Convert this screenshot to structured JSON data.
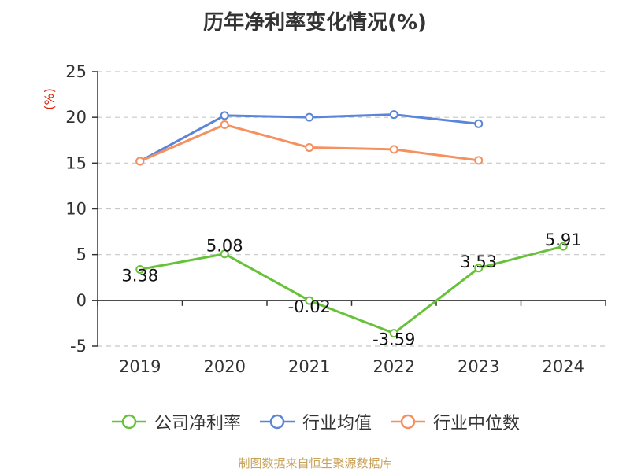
{
  "title": "历年净利率变化情况(%)",
  "source": "制图数据来自恒生聚源数据库",
  "colors": {
    "company": "#67c23a",
    "avg": "#5b85d8",
    "median": "#f5905f",
    "axis": "#333333",
    "grid": "#c8c8c8",
    "yunit": "#d81e06"
  },
  "chart_data": {
    "type": "line",
    "title": "历年净利率变化情况(%)",
    "ylabel": "(%)",
    "xlabel": "",
    "categories": [
      "2019",
      "2020",
      "2021",
      "2022",
      "2023",
      "2024"
    ],
    "ylim": [
      -5,
      25
    ],
    "yticks": [
      -5,
      0,
      5,
      10,
      15,
      20,
      25
    ],
    "grid": true,
    "legend_position": "bottom",
    "series": [
      {
        "name": "公司净利率",
        "color": "#67c23a",
        "values": [
          3.38,
          5.08,
          -0.02,
          -3.59,
          3.53,
          5.91
        ],
        "labels": [
          "3.38",
          "5.08",
          "-0.02",
          "-3.59",
          "3.53",
          "5.91"
        ]
      },
      {
        "name": "行业均值",
        "color": "#5b85d8",
        "values": [
          15.2,
          20.2,
          20.0,
          20.3,
          19.3,
          null
        ]
      },
      {
        "name": "行业中位数",
        "color": "#f5905f",
        "values": [
          15.2,
          19.2,
          16.7,
          16.5,
          15.3,
          null
        ]
      }
    ]
  }
}
